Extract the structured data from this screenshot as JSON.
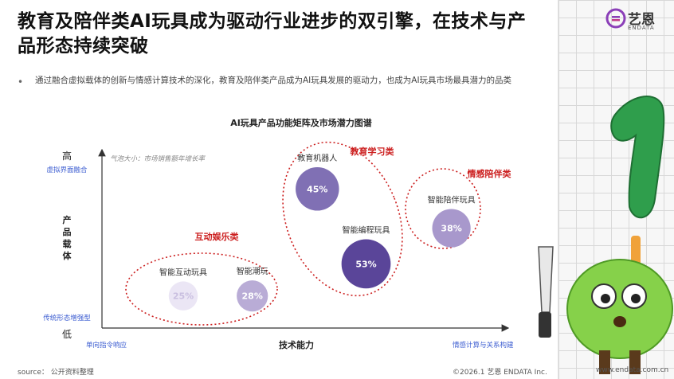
{
  "page": {
    "title": "教育及陪伴类AI玩具成为驱动行业进步的双引擎，在技术与产品形态持续突破",
    "bullet": "通过融合虚拟载体的创新与情感计算技术的深化，教育及陪伴类产品成为AI玩具发展的驱动力，也成为AI玩具市场最具潜力的品类",
    "footer_source": "source： 公开资料整理",
    "footer_copyright": "©2026.1  艺恩  ENDATA Inc.",
    "footer_site": "www.endata.com.cn",
    "logo_cn": "艺恩",
    "logo_en": "ENDATA"
  },
  "chart_data": {
    "type": "scatter",
    "title": "AI玩具产品功能矩阵及市场潜力图谱",
    "note": "气泡大小：市场销售额年增长率",
    "xlabel": "技术能力",
    "ylabel": "产品载体",
    "x_low_label": "单向指令响应",
    "x_high_label": "情感计算与关系构建",
    "y_high": "高",
    "y_high_sub": "虚拟界面融合",
    "y_low": "低",
    "y_low_sub": "传统形态增强型",
    "xlim": [
      0,
      10
    ],
    "ylim": [
      0,
      10
    ],
    "points": [
      {
        "name": "智能互动玩具",
        "x": 2.0,
        "y": 1.8,
        "value": 25,
        "label": "25%",
        "color": "#ebe6f5"
      },
      {
        "name": "智能潮玩",
        "x": 3.7,
        "y": 1.8,
        "value": 28,
        "label": "28%",
        "color": "#b9acd6"
      },
      {
        "name": "教育机器人",
        "x": 5.3,
        "y": 7.8,
        "value": 45,
        "label": "45%",
        "color": "#8070b4"
      },
      {
        "name": "智能编程玩具",
        "x": 6.5,
        "y": 3.6,
        "value": 53,
        "label": "53%",
        "color": "#5a4599"
      },
      {
        "name": "智能陪伴玩具",
        "x": 8.6,
        "y": 5.6,
        "value": 38,
        "label": "38%",
        "color": "#a898cc"
      }
    ],
    "groups": [
      {
        "name": "互动娱乐类",
        "color": "#cc1f1f"
      },
      {
        "name": "教育学习类",
        "color": "#cc1f1f"
      },
      {
        "name": "情感陪伴类",
        "color": "#cc1f1f"
      }
    ]
  }
}
